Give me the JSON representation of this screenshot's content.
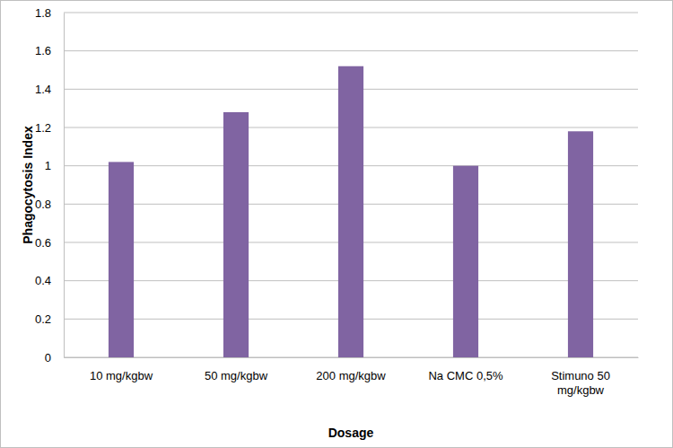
{
  "chart_data": {
    "type": "bar",
    "x_label": "Dosage",
    "y_label": "Phagocytosis Index",
    "categories": [
      "10 mg/kgbw",
      "50 mg/kgbw",
      "200 mg/kgbw",
      "Na CMC 0,5%",
      "Stimuno 50 mg/kgbw"
    ],
    "values": [
      1.02,
      1.28,
      1.52,
      1.0,
      1.18
    ],
    "color": "#8064a2",
    "ylim": [
      0,
      1.8
    ],
    "yticks": [
      0,
      0.2,
      0.4,
      0.6,
      0.8,
      1,
      1.2,
      1.4,
      1.6,
      1.8
    ],
    "grid": true
  }
}
